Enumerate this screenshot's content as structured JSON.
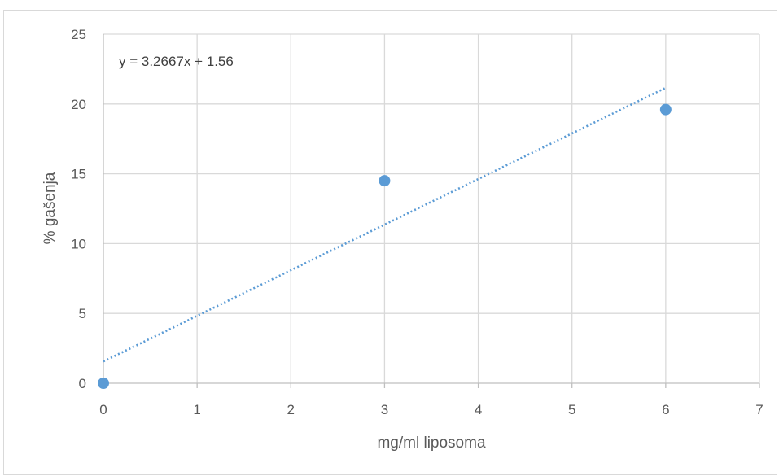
{
  "chart_data": {
    "type": "scatter",
    "title": "",
    "xlabel": "mg/ml liposoma",
    "ylabel": "% gašenja",
    "xlim": [
      0,
      7
    ],
    "ylim": [
      0,
      25
    ],
    "x_ticks": [
      "0",
      "1",
      "2",
      "3",
      "4",
      "5",
      "6",
      "7"
    ],
    "y_ticks": [
      "0",
      "5",
      "10",
      "15",
      "20",
      "25"
    ],
    "grid": true,
    "legend": "none",
    "series": [
      {
        "x": [
          0,
          3,
          6
        ],
        "y": [
          0,
          14.5,
          19.6
        ]
      }
    ],
    "trendline": {
      "type": "linear",
      "slope": 3.2667,
      "intercept": 1.56,
      "x_range": [
        0,
        6
      ],
      "equation_label": "y = 3.2667x + 1.56",
      "style": "dotted"
    },
    "colors": {
      "marker": "#5b9bd5",
      "trendline": "#5b9bd5",
      "grid": "#d9d9d9",
      "axis": "#bfbfbf",
      "text": "#595959"
    }
  }
}
